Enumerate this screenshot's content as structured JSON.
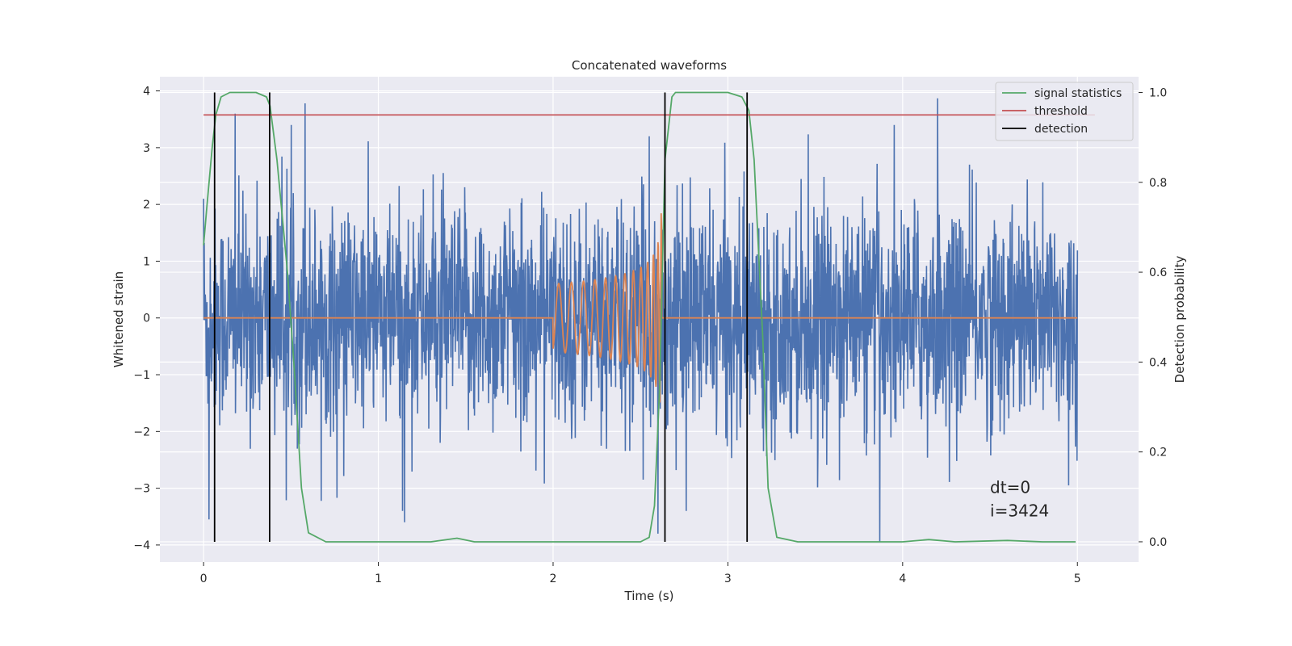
{
  "chart_data": {
    "type": "line",
    "title": "Concatenated waveforms",
    "xlabel": "Time (s)",
    "ylabel": "Whitened strain",
    "y2label": "Detection probability",
    "xlim": [
      -0.25,
      5.35
    ],
    "ylim": [
      -4.3,
      4.25
    ],
    "y2lim": [
      -0.045,
      1.035
    ],
    "x_ticks": [
      0,
      1,
      2,
      3,
      4,
      5
    ],
    "y_ticks": [
      -4,
      -3,
      -2,
      -1,
      0,
      1,
      2,
      3,
      4
    ],
    "y2_ticks": [
      0.0,
      0.2,
      0.4,
      0.6,
      0.8,
      1.0
    ],
    "x_tick_labels": [
      "0",
      "1",
      "2",
      "3",
      "4",
      "5"
    ],
    "y_tick_labels": [
      "−4",
      "−3",
      "−2",
      "−1",
      "0",
      "1",
      "2",
      "3",
      "4"
    ],
    "y2_tick_labels": [
      "0.0",
      "0.2",
      "0.4",
      "0.6",
      "0.8",
      "1.0"
    ],
    "grid": true,
    "legend_position": "top-right",
    "series": [
      {
        "name": "",
        "axis": "left",
        "color": "#4c72b0",
        "description_kind": "noise",
        "x_range": [
          0,
          5
        ],
        "amplitude_typical": 1.3,
        "peaks": [
          {
            "x": 0.0,
            "y": 2.1
          },
          {
            "x": 0.03,
            "y": -3.55
          },
          {
            "x": 0.18,
            "y": 3.6
          },
          {
            "x": 0.58,
            "y": 3.78
          },
          {
            "x": 1.15,
            "y": -3.6
          },
          {
            "x": 2.55,
            "y": 3.2
          },
          {
            "x": 2.6,
            "y": -3.8
          },
          {
            "x": 3.87,
            "y": -3.95
          },
          {
            "x": 4.2,
            "y": 3.87
          },
          {
            "x": 4.95,
            "y": -2.95
          }
        ]
      },
      {
        "name": "",
        "axis": "left",
        "color": "#dd8452",
        "description_kind": "chirp",
        "x_range": [
          0,
          5
        ],
        "chirp_start": 2.0,
        "chirp_end": 2.62,
        "chirp_peak_amplitude": 2.0
      },
      {
        "name": "signal statistics",
        "axis": "right",
        "color": "#55a868",
        "x": [
          0.0,
          0.02,
          0.05,
          0.07,
          0.1,
          0.15,
          0.3,
          0.36,
          0.38,
          0.42,
          0.48,
          0.52,
          0.56,
          0.6,
          0.7,
          1.3,
          1.45,
          1.55,
          2.5,
          2.55,
          2.58,
          2.61,
          2.64,
          2.68,
          2.7,
          3.0,
          3.08,
          3.12,
          3.15,
          3.2,
          3.23,
          3.28,
          3.4,
          4.0,
          4.15,
          4.3,
          4.6,
          4.8,
          4.99
        ],
        "y": [
          0.66,
          0.75,
          0.88,
          0.95,
          0.99,
          1.0,
          1.0,
          0.99,
          0.97,
          0.85,
          0.6,
          0.38,
          0.12,
          0.02,
          0.0,
          0.0,
          0.008,
          0.0,
          0.0,
          0.01,
          0.08,
          0.35,
          0.85,
          0.99,
          1.0,
          1.0,
          0.99,
          0.96,
          0.85,
          0.45,
          0.12,
          0.01,
          0.0,
          0.0,
          0.005,
          0.0,
          0.003,
          0.0,
          0.0
        ]
      },
      {
        "name": "threshold",
        "axis": "right",
        "color": "#c44e52",
        "x": [
          0,
          5.1
        ],
        "y": [
          0.95,
          0.95
        ]
      },
      {
        "name": "detection",
        "axis": "right",
        "color": "#000000",
        "type": "vlines",
        "x": [
          0.063,
          0.378,
          2.64,
          3.11
        ],
        "y_range": [
          0.0,
          1.0
        ]
      }
    ],
    "annotations": [
      "dt=0",
      "i=3424"
    ],
    "annotation_anchor": {
      "x": 4.5,
      "y": -3.0
    }
  }
}
